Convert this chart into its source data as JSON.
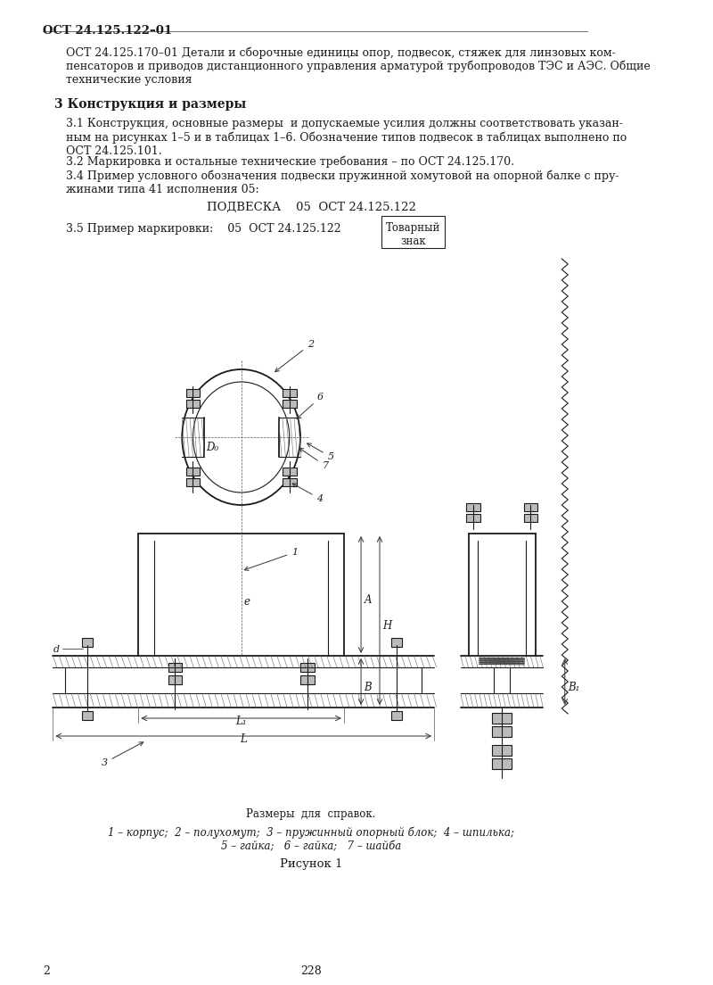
{
  "page_width": 8.0,
  "page_height": 11.04,
  "bg_color": "#ffffff",
  "header_bold": "ОСТ 24.125.122–01",
  "para1": "ОСТ 24.125.170–01 Детали и сборочные единицы опор, подвесок, стяжек для линзовых ком-\nпенсаторов и приводов дистанционного управления арматурой трубопроводов ТЭС и АЭС. Общие\nтехнические условия",
  "section_header": "3 Конструкция и размеры",
  "para31": "3.1 Конструкция, основные размеры  и допускаемые усилия должны соответствовать указан-\nным на рисунках 1–5 и в таблицах 1–6. Обозначение типов подвесок в таблицах выполнено по\nОСТ 24.125.101.",
  "para32": "3.2 Маркировка и остальные технические требования – по ОСТ 24.125.170.",
  "para34": "3.4 Пример условного обозначения подвески пружинной хомутовой на опорной балке с пру-\nжинами типа 41 исполнения 05:",
  "podveska_line": "ПОДВЕСКА    05  ОСТ 24.125.122",
  "para35_left": "3.5 Пример маркировки:    05  ОСТ 24.125.122",
  "tovarny_znak": "Товарный\nзнак",
  "razmer_sprav": "Размеры  для  справок.",
  "legend_line1": "1 – корпус;  2 – полухомут;  3 – пружинный опорный блок;  4 – шпилька;",
  "legend_line2": "5 – гайка;   6 – гайка;   7 – шайба",
  "figure_caption": "Рисунок 1",
  "page_num_left": "2",
  "page_num_center": "228"
}
